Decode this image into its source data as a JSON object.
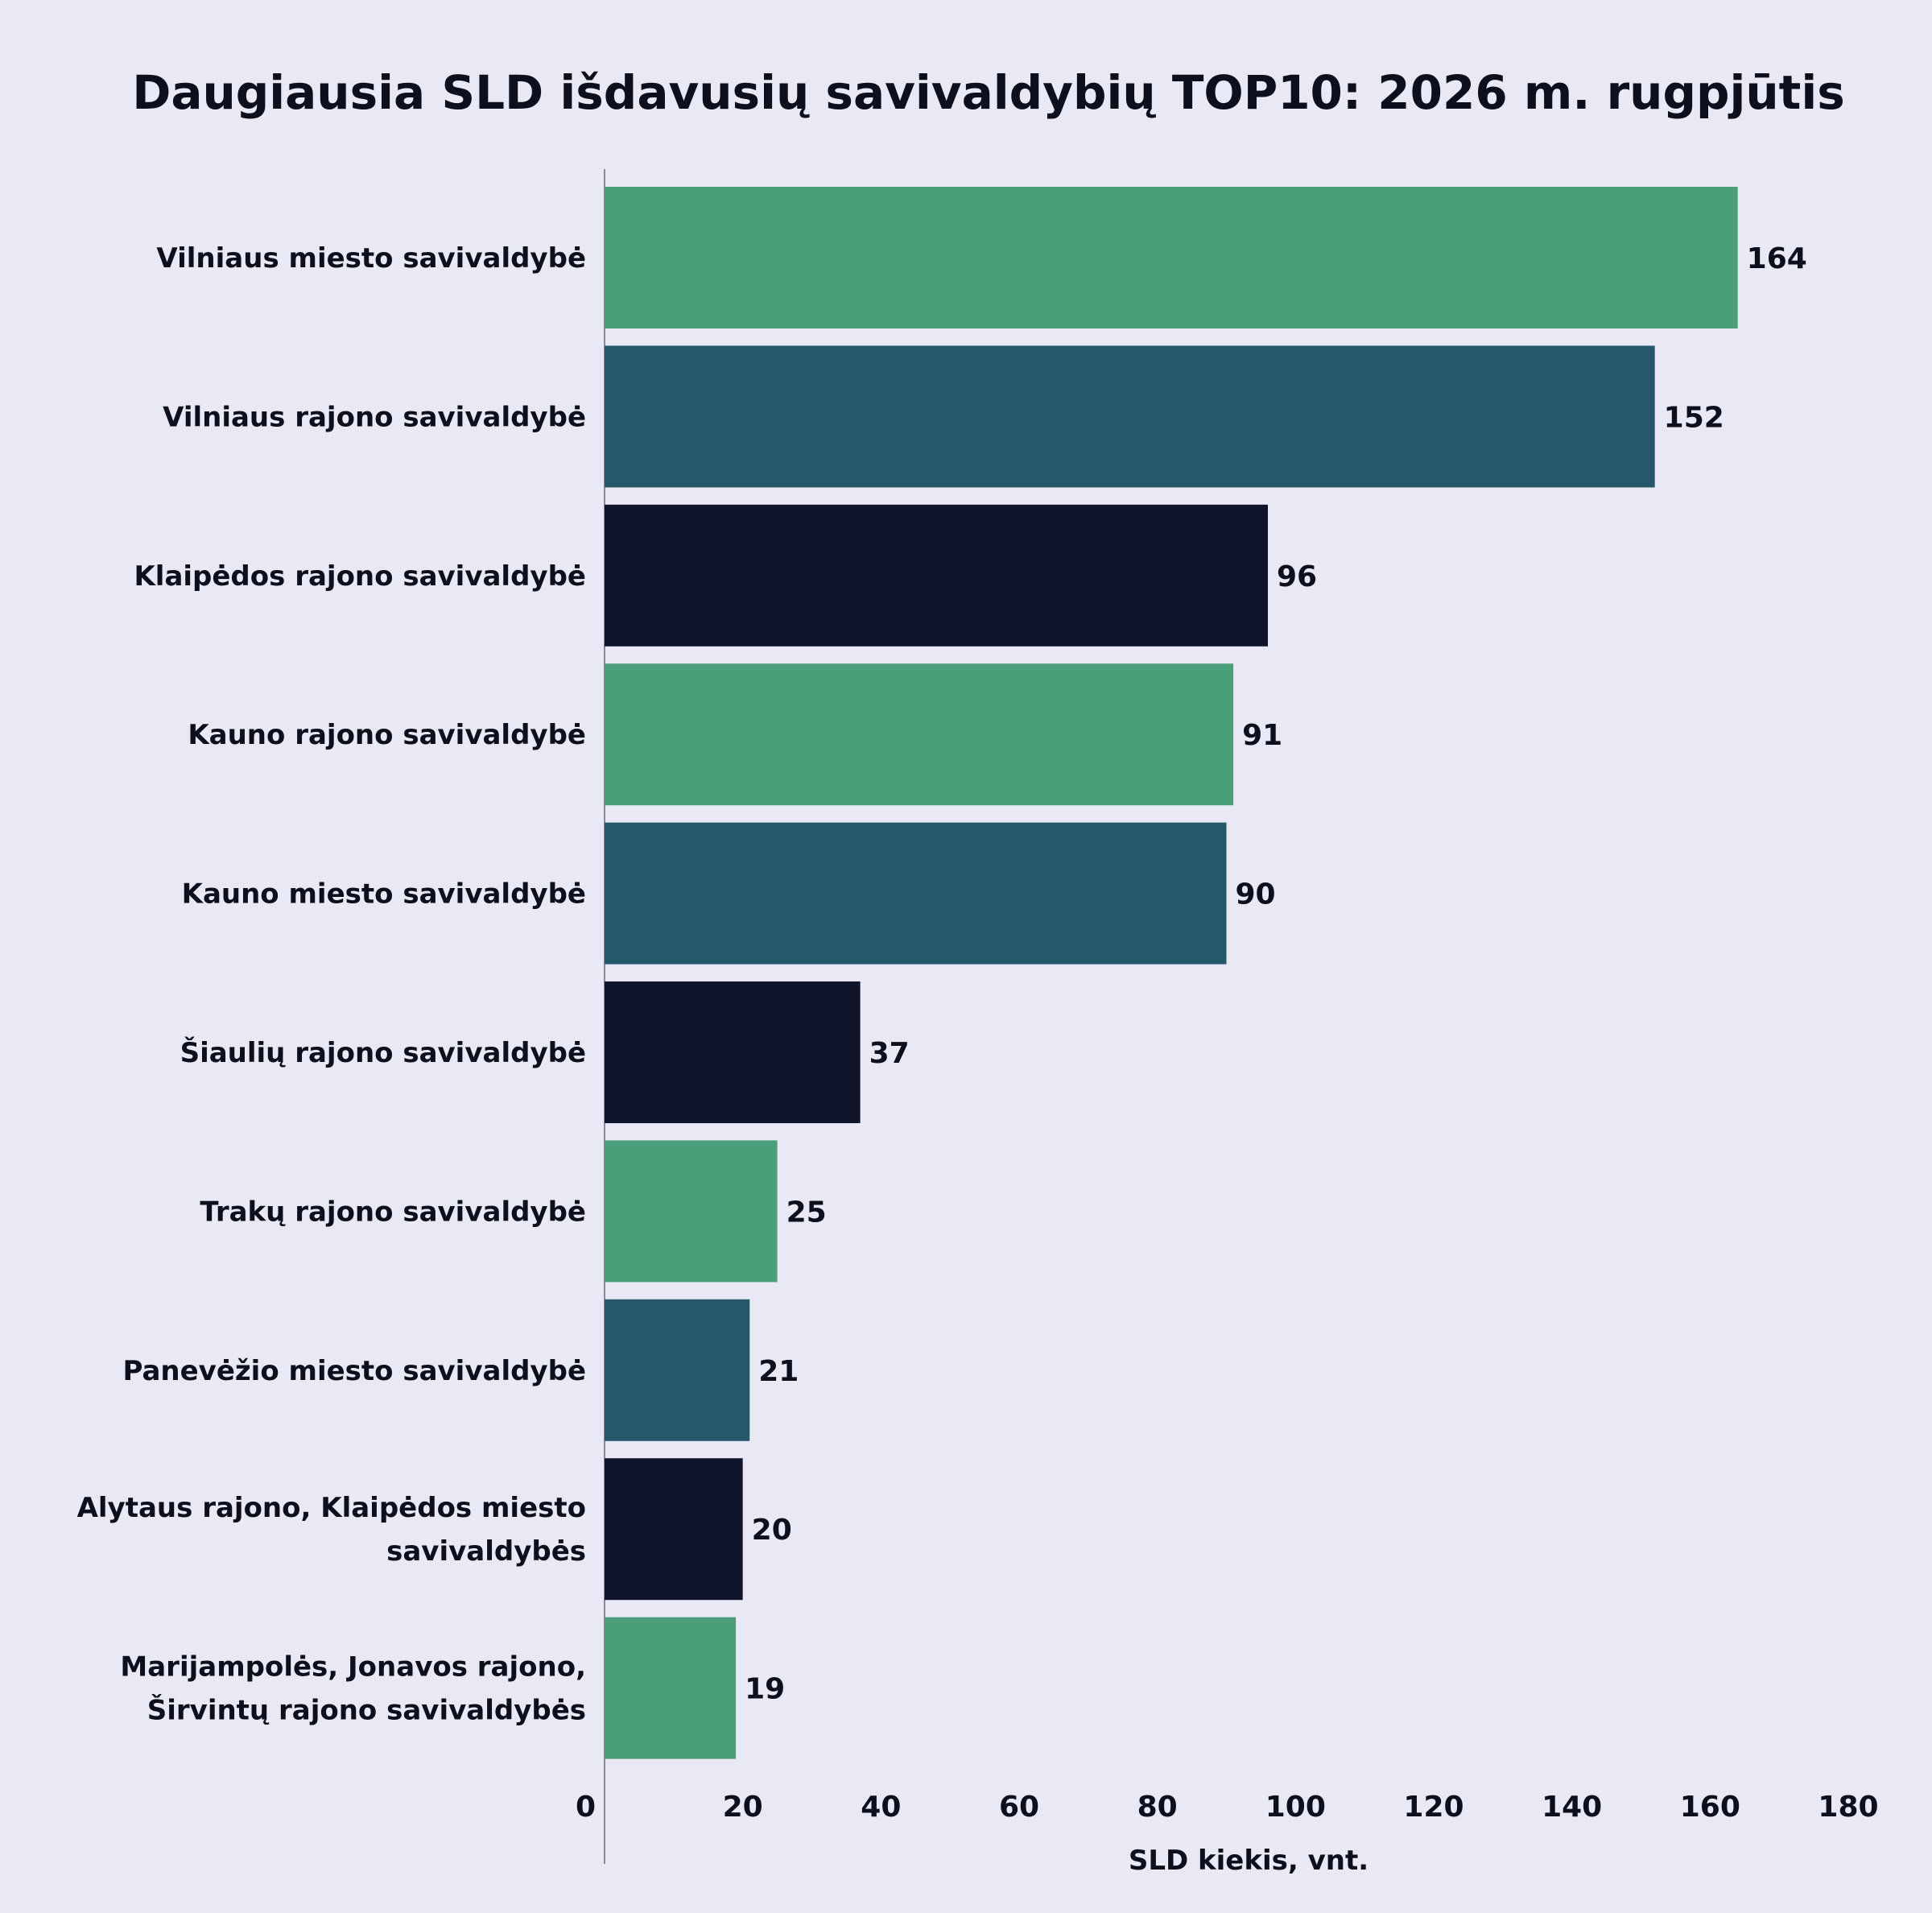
{
  "chart_data": {
    "type": "bar",
    "orientation": "horizontal",
    "title": "Daugiausia SLD  išdavusių savivaldybių TOP10: 2026 m. rugpjūtis",
    "xlabel": "SLD kiekis, vnt.",
    "ylabel": "",
    "xlim": [
      0,
      180
    ],
    "xticks": [
      0,
      20,
      40,
      60,
      80,
      100,
      120,
      140,
      160,
      180
    ],
    "grid": false,
    "legend": "none",
    "categories": [
      [
        "Vilniaus miesto savivaldybė"
      ],
      [
        "Vilniaus rajono savivaldybė"
      ],
      [
        "Klaipėdos rajono savivaldybė"
      ],
      [
        "Kauno rajono savivaldybė"
      ],
      [
        "Kauno miesto savivaldybė"
      ],
      [
        "Šiaulių rajono savivaldybė"
      ],
      [
        "Trakų rajono savivaldybė"
      ],
      [
        "Panevėžio miesto savivaldybė"
      ],
      [
        "Alytaus rajono, Klaipėdos miesto",
        "savivaldybės"
      ],
      [
        "Marijampolės, Jonavos rajono,",
        "Širvintų rajono savivaldybės"
      ]
    ],
    "values": [
      164,
      152,
      96,
      91,
      90,
      37,
      25,
      21,
      20,
      19
    ],
    "bar_colors": [
      "#4a9e7a",
      "#255868",
      "#10152b",
      "#4a9e7a",
      "#255868",
      "#10152b",
      "#4a9e7a",
      "#255868",
      "#10152b",
      "#4a9e7a"
    ]
  },
  "colors": {
    "background": "#e8e9f5",
    "text": "#0d0f1c",
    "axis": "#888a99"
  }
}
